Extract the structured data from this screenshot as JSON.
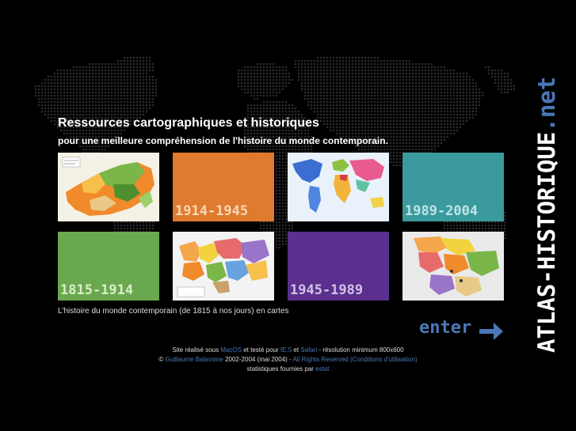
{
  "header": {
    "title": "Ressources cartographiques et historiques",
    "subtitle": "pour une meilleure compréhension de l'histoire du monde contemporain."
  },
  "tiles": [
    {
      "label": "",
      "icon": "south-africa-map"
    },
    {
      "label": "1914-1945",
      "color": "#e07a2e"
    },
    {
      "label": "",
      "icon": "world-map"
    },
    {
      "label": "1989-2004",
      "color": "#3a9a9e"
    },
    {
      "label": "1815-1914",
      "color": "#6aa84f"
    },
    {
      "label": "",
      "icon": "europe-map"
    },
    {
      "label": "1945-1989",
      "color": "#5a2f8e"
    },
    {
      "label": "",
      "icon": "balkans-map"
    }
  ],
  "caption": "L'histoire du monde contemporain (de 1815 à nos jours) en cartes",
  "enter": {
    "label": "enter"
  },
  "brand": {
    "part1": "ATLAS-HISTORIQUE",
    "part2": ".net"
  },
  "footer": {
    "l1_a": "Site réalisé sous ",
    "l1_mac": "MacOS",
    "l1_b": " et testé pour ",
    "l1_ie": "IE.5",
    "l1_c": " et ",
    "l1_safari": "Safari",
    "l1_d": " - résolution minimum 800x600",
    "l2_copy": "© ",
    "l2_author": "Guillaume Balavoine",
    "l2_a": " 2002-2004 (mai 2004) - ",
    "l2_rights": "All Rights Reserved (Conditions d'utilisation)",
    "l3_a": "statistiques fournies par ",
    "l3_estat": "estat"
  },
  "colors": {
    "accent": "#4a78b8",
    "background": "#000000"
  }
}
